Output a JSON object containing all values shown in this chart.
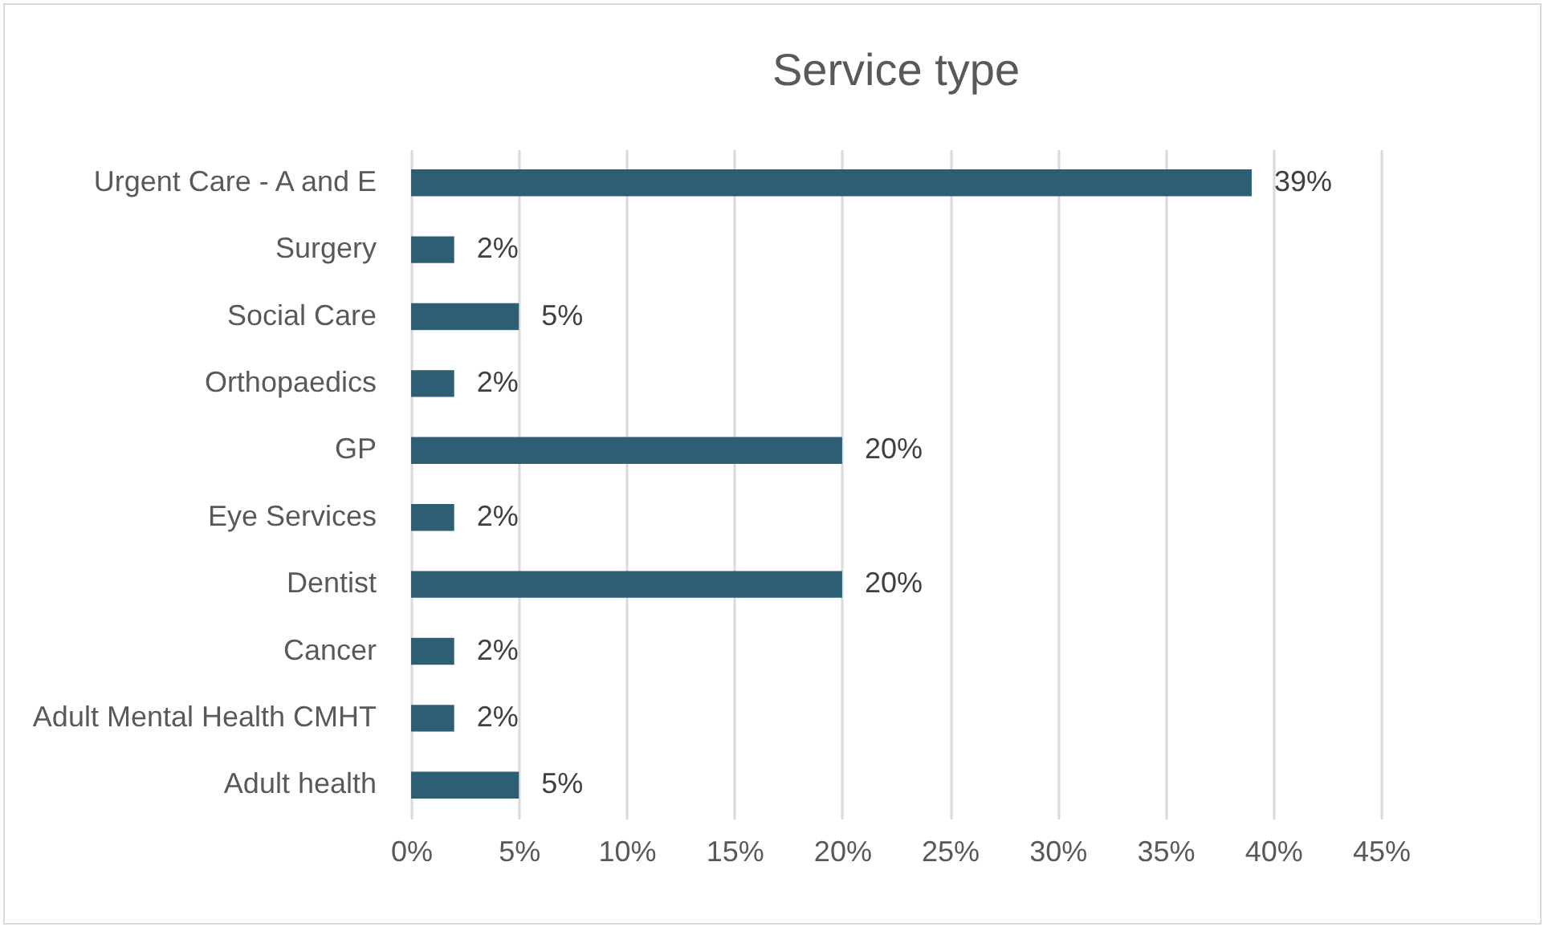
{
  "chart_data": {
    "type": "bar",
    "orientation": "horizontal",
    "title": "Service type",
    "categories": [
      "Urgent Care - A and E",
      "Surgery",
      "Social Care",
      "Orthopaedics",
      "GP ",
      "Eye Services ",
      "Dentist",
      "Cancer ",
      "Adult Mental Health CMHT",
      "Adult health"
    ],
    "values": [
      39,
      2,
      5,
      2,
      20,
      2,
      20,
      2,
      2,
      5
    ],
    "value_labels": [
      "39%",
      "2%",
      "5%",
      "2%",
      "20%",
      "2%",
      "20%",
      "2%",
      "2%",
      "5%"
    ],
    "color": "#2e5e74",
    "xlim": [
      0,
      45
    ],
    "xticks": [
      {
        "value": 0,
        "label": "0%"
      },
      {
        "value": 5,
        "label": "5%"
      },
      {
        "value": 10,
        "label": "10%"
      },
      {
        "value": 15,
        "label": "15%"
      },
      {
        "value": 20,
        "label": "20%"
      },
      {
        "value": 25,
        "label": "25%"
      },
      {
        "value": 30,
        "label": "30%"
      },
      {
        "value": 35,
        "label": "35%"
      },
      {
        "value": 40,
        "label": "40%"
      },
      {
        "value": 45,
        "label": "45%"
      }
    ],
    "grid": "x"
  }
}
